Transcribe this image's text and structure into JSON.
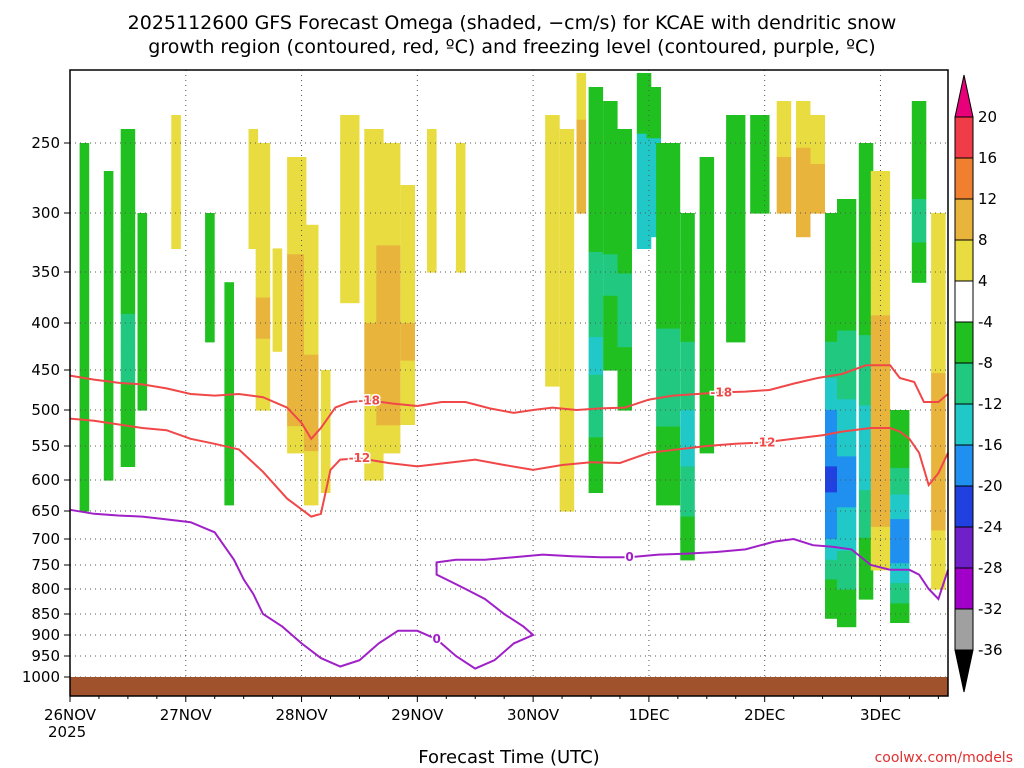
{
  "chart_data": {
    "type": "heatmap",
    "title_line1": "2025112600 GFS Forecast Omega (shaded, −cm/s) for KCAE with dendritic snow",
    "title_line2": "growth region (contoured, red, ºC) and freezing level (contoured, purple, ºC)",
    "xlabel": "Forecast Time (UTC)",
    "credit": "coolwx.com/models",
    "x_start_year": "2025",
    "x_ticks": [
      "26NOV",
      "27NOV",
      "28NOV",
      "29NOV",
      "30NOV",
      "1DEC",
      "2DEC",
      "3DEC"
    ],
    "x_tick_hours": [
      0,
      24,
      48,
      72,
      96,
      120,
      144,
      168
    ],
    "x_range_hours": [
      0,
      182
    ],
    "y_ticks": [
      250,
      300,
      350,
      400,
      450,
      500,
      550,
      600,
      650,
      700,
      750,
      800,
      850,
      900,
      950,
      1000
    ],
    "y_range_hpa": [
      200,
      1020
    ],
    "colorbar_levels": [
      20,
      16,
      12,
      8,
      4,
      -4,
      -8,
      -12,
      -16,
      -20,
      -24,
      -28,
      -32,
      -36
    ],
    "colorbar_colors": [
      "#e8007a",
      "#f03c48",
      "#f08030",
      "#e8b43c",
      "#e8dc40",
      "#ffffff",
      "#20c020",
      "#20c880",
      "#20c8c8",
      "#2090f0",
      "#2040e0",
      "#7020c8",
      "#a000c8",
      "#a0a0a0",
      "#000000"
    ],
    "contour_colors": {
      "dgz": "#f04848",
      "freezing": "#a020c8",
      "ground": "#a0522d"
    },
    "contours": [
      {
        "label": "-18",
        "kind": "dgz",
        "points": [
          [
            0,
            457
          ],
          [
            5,
            462
          ],
          [
            10,
            466
          ],
          [
            15,
            468
          ],
          [
            20,
            473
          ],
          [
            25,
            480
          ],
          [
            30,
            482
          ],
          [
            35,
            480
          ],
          [
            40,
            484
          ],
          [
            45,
            497
          ],
          [
            48,
            518
          ],
          [
            50,
            540
          ],
          [
            52,
            525
          ],
          [
            55,
            497
          ],
          [
            58,
            490
          ],
          [
            62,
            488
          ],
          [
            67,
            492
          ],
          [
            72,
            495
          ],
          [
            77,
            490
          ],
          [
            82,
            490
          ],
          [
            87,
            498
          ],
          [
            92,
            504
          ],
          [
            96,
            500
          ],
          [
            100,
            497
          ],
          [
            105,
            500
          ],
          [
            110,
            498
          ],
          [
            115,
            497
          ],
          [
            120,
            487
          ],
          [
            125,
            482
          ],
          [
            130,
            480
          ],
          [
            135,
            478
          ],
          [
            140,
            477
          ],
          [
            145,
            475
          ],
          [
            150,
            467
          ],
          [
            155,
            460
          ],
          [
            160,
            455
          ],
          [
            165,
            445
          ],
          [
            170,
            445
          ],
          [
            172,
            460
          ],
          [
            175,
            465
          ],
          [
            177,
            490
          ],
          [
            180,
            490
          ],
          [
            182,
            480
          ]
        ]
      },
      {
        "label": "-12",
        "kind": "dgz",
        "points": [
          [
            0,
            512
          ],
          [
            5,
            515
          ],
          [
            10,
            520
          ],
          [
            15,
            525
          ],
          [
            20,
            528
          ],
          [
            25,
            540
          ],
          [
            30,
            547
          ],
          [
            35,
            555
          ],
          [
            40,
            588
          ],
          [
            45,
            630
          ],
          [
            50,
            660
          ],
          [
            52,
            655
          ],
          [
            54,
            585
          ],
          [
            56,
            570
          ],
          [
            60,
            568
          ],
          [
            66,
            575
          ],
          [
            72,
            580
          ],
          [
            78,
            575
          ],
          [
            84,
            570
          ],
          [
            90,
            578
          ],
          [
            96,
            585
          ],
          [
            102,
            578
          ],
          [
            108,
            574
          ],
          [
            114,
            575
          ],
          [
            120,
            560
          ],
          [
            126,
            555
          ],
          [
            132,
            550
          ],
          [
            138,
            547
          ],
          [
            144,
            545
          ],
          [
            150,
            540
          ],
          [
            156,
            535
          ],
          [
            160,
            530
          ],
          [
            166,
            525
          ],
          [
            170,
            525
          ],
          [
            172,
            530
          ],
          [
            174,
            540
          ],
          [
            176,
            560
          ],
          [
            178,
            608
          ],
          [
            180,
            590
          ],
          [
            182,
            560
          ]
        ]
      },
      {
        "label": "0",
        "kind": "freezing",
        "points": [
          [
            0,
            648
          ],
          [
            5,
            655
          ],
          [
            10,
            658
          ],
          [
            15,
            660
          ],
          [
            20,
            665
          ],
          [
            25,
            670
          ],
          [
            30,
            688
          ],
          [
            34,
            740
          ],
          [
            36,
            780
          ],
          [
            38,
            810
          ],
          [
            40,
            850
          ],
          [
            44,
            880
          ],
          [
            48,
            920
          ],
          [
            52,
            955
          ],
          [
            56,
            975
          ],
          [
            60,
            960
          ],
          [
            64,
            920
          ],
          [
            68,
            890
          ],
          [
            72,
            890
          ],
          [
            76,
            910
          ],
          [
            80,
            950
          ],
          [
            84,
            980
          ],
          [
            88,
            960
          ],
          [
            92,
            920
          ],
          [
            96,
            900
          ],
          [
            94,
            880
          ],
          [
            90,
            850
          ],
          [
            86,
            820
          ],
          [
            82,
            800
          ],
          [
            78,
            780
          ],
          [
            76,
            770
          ],
          [
            76,
            745
          ],
          [
            80,
            740
          ],
          [
            86,
            740
          ],
          [
            92,
            735
          ],
          [
            98,
            730
          ],
          [
            104,
            733
          ],
          [
            110,
            735
          ],
          [
            116,
            735
          ],
          [
            122,
            730
          ],
          [
            128,
            728
          ],
          [
            134,
            725
          ],
          [
            140,
            720
          ],
          [
            146,
            705
          ],
          [
            150,
            700
          ],
          [
            154,
            712
          ],
          [
            158,
            715
          ],
          [
            162,
            720
          ],
          [
            166,
            750
          ],
          [
            170,
            760
          ],
          [
            174,
            760
          ],
          [
            176,
            770
          ],
          [
            178,
            800
          ],
          [
            180,
            820
          ],
          [
            182,
            760
          ]
        ]
      }
    ],
    "omega_note": "shaded omega cells approximated from image"
  }
}
